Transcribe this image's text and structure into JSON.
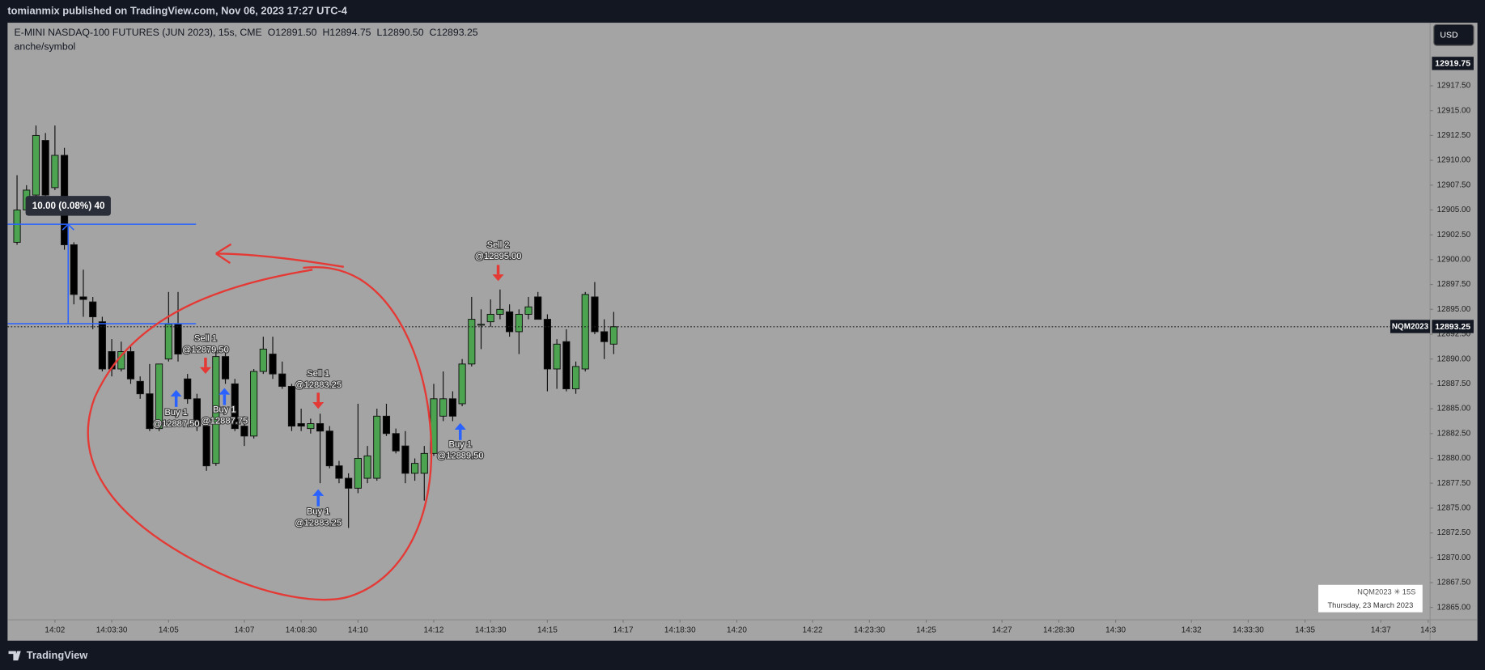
{
  "header": {
    "publisher": "tomianmix published on TradingView.com, Nov 06, 2023 17:27 UTC-4"
  },
  "chart_data": {
    "type": "candlestick",
    "title": "E-MINI NASDAQ-100 FUTURES (JUN 2023), 15s, CME",
    "legend_ohlc": [
      "O12891.50",
      "H12894.75",
      "L12890.50",
      "C12893.25"
    ],
    "indicator_label": "anche/symbol",
    "currency": "USD",
    "high_tag": "12919.75",
    "last_symbol": "NQM2023",
    "last_price": "12893.25",
    "measure_label": "10.00 (0.08%) 40",
    "up_color": "#4ca350",
    "down_color": "#000000",
    "x": [
      1.0,
      1.25,
      1.5,
      1.75,
      2.0,
      2.25,
      2.5,
      2.75,
      3.0,
      3.25,
      3.5,
      3.75,
      4.0,
      4.25,
      4.5,
      4.75,
      5.0,
      5.25,
      5.5,
      5.75,
      6.0,
      6.25,
      6.5,
      6.75,
      7.0,
      7.25,
      7.5,
      7.75,
      8.0,
      8.25,
      8.5,
      8.75,
      9.0,
      9.25,
      9.5,
      9.75,
      10.0,
      10.25,
      10.5,
      10.75,
      11.0,
      11.25,
      11.5,
      11.75,
      12.0,
      12.25,
      12.5,
      12.75,
      13.0,
      13.25,
      13.5,
      13.75,
      14.0,
      14.25,
      14.5,
      14.75,
      15.0,
      15.25,
      15.5,
      15.75,
      16.0,
      16.25,
      16.5,
      16.75
    ],
    "open": [
      12901.75,
      12905.0,
      12906.5,
      12912.0,
      12907.25,
      12910.5,
      12901.5,
      12896.25,
      12895.75,
      12893.75,
      12890.75,
      12889.0,
      12890.75,
      12887.75,
      12886.5,
      12883.0,
      12890.0,
      12893.5,
      12888.0,
      12886.0,
      12883.25,
      12879.5,
      12890.25,
      12887.5,
      12883.25,
      12882.25,
      12888.75,
      12890.5,
      12888.5,
      12887.25,
      12883.5,
      12883.0,
      12883.5,
      12882.75,
      12879.25,
      12878.0,
      12877.0,
      12878.0,
      12878.0,
      12884.25,
      12882.5,
      12881.25,
      12878.5,
      12878.5,
      12880.5,
      12884.25,
      12886.0,
      12885.5,
      12889.5,
      12893.5,
      12893.75,
      12894.5,
      12894.75,
      12892.75,
      12894.5,
      12896.25,
      12894.0,
      12889.0,
      12891.75,
      12887.0,
      12889.0,
      12896.25,
      12892.75,
      12891.5
    ],
    "high": [
      12908.5,
      12907.5,
      12913.5,
      12912.75,
      12913.5,
      12911.25,
      12901.75,
      12899.0,
      12896.25,
      12894.25,
      12892.0,
      12891.75,
      12891.25,
      12888.25,
      12889.5,
      12889.5,
      12896.75,
      12896.75,
      12888.5,
      12886.5,
      12883.75,
      12891.25,
      12891.25,
      12888.0,
      12884.25,
      12889.0,
      12892.25,
      12892.25,
      12889.75,
      12887.5,
      12885.0,
      12884.0,
      12884.5,
      12883.25,
      12879.75,
      12878.5,
      12885.5,
      12881.25,
      12885.0,
      12885.5,
      12883.0,
      12882.75,
      12880.0,
      12881.25,
      12887.5,
      12888.75,
      12886.75,
      12890.0,
      12896.25,
      12895.0,
      12896.0,
      12897.0,
      12895.5,
      12895.0,
      12896.25,
      12896.75,
      12894.5,
      12892.0,
      12893.0,
      12889.75,
      12896.75,
      12897.75,
      12894.0,
      12894.75
    ],
    "low": [
      12901.5,
      12904.5,
      12906.25,
      12906.0,
      12907.0,
      12901.0,
      12895.5,
      12894.25,
      12893.0,
      12888.75,
      12888.25,
      12888.75,
      12887.5,
      12886.0,
      12882.75,
      12882.75,
      12889.75,
      12889.75,
      12885.5,
      12882.75,
      12878.75,
      12879.25,
      12887.5,
      12882.75,
      12881.25,
      12882.0,
      12888.5,
      12888.0,
      12887.0,
      12882.75,
      12882.75,
      12882.5,
      12877.5,
      12879.0,
      12877.5,
      12873.0,
      12876.5,
      12877.5,
      12877.75,
      12882.25,
      12880.5,
      12877.5,
      12877.75,
      12875.75,
      12880.25,
      12883.75,
      12883.75,
      12885.25,
      12889.25,
      12891.0,
      12893.25,
      12894.0,
      12892.25,
      12890.5,
      12894.0,
      12894.0,
      12886.75,
      12887.0,
      12886.75,
      12886.5,
      12888.75,
      12892.5,
      12890.0,
      12890.5
    ],
    "close": [
      12905.0,
      12907.0,
      12912.5,
      12906.5,
      12910.5,
      12901.5,
      12896.5,
      12896.0,
      12894.25,
      12889.0,
      12889.0,
      12890.75,
      12888.0,
      12886.5,
      12883.0,
      12889.5,
      12893.5,
      12890.5,
      12886.0,
      12883.25,
      12879.25,
      12890.25,
      12888.0,
      12883.0,
      12882.25,
      12888.75,
      12891.0,
      12888.5,
      12887.25,
      12883.25,
      12883.25,
      12883.5,
      12882.75,
      12879.25,
      12878.0,
      12877.0,
      12880.0,
      12880.25,
      12884.25,
      12882.5,
      12880.75,
      12878.5,
      12879.5,
      12880.5,
      12886.0,
      12886.0,
      12884.25,
      12889.5,
      12894.0,
      12893.5,
      12894.5,
      12895.0,
      12892.75,
      12894.5,
      12895.25,
      12894.0,
      12889.0,
      12891.5,
      12887.0,
      12889.25,
      12896.5,
      12892.75,
      12891.75,
      12893.25
    ],
    "xlim": [
      0.75,
      38.3
    ],
    "ylim": [
      12863.75,
      12923.85
    ],
    "xticks": [
      {
        "value": 2,
        "label": "14:02"
      },
      {
        "value": 3.5,
        "label": "14:03:30"
      },
      {
        "value": 5,
        "label": "14:05"
      },
      {
        "value": 7,
        "label": "14:07"
      },
      {
        "value": 8.5,
        "label": "14:08:30"
      },
      {
        "value": 10,
        "label": "14:10"
      },
      {
        "value": 12,
        "label": "14:12"
      },
      {
        "value": 13.5,
        "label": "14:13:30"
      },
      {
        "value": 15,
        "label": "14:15"
      },
      {
        "value": 17,
        "label": "14:17"
      },
      {
        "value": 18.5,
        "label": "14:18:30"
      },
      {
        "value": 20,
        "label": "14:20"
      },
      {
        "value": 22,
        "label": "14:22"
      },
      {
        "value": 23.5,
        "label": "14:23:30"
      },
      {
        "value": 25,
        "label": "14:25"
      },
      {
        "value": 27,
        "label": "14:27"
      },
      {
        "value": 28.5,
        "label": "14:28:30"
      },
      {
        "value": 30,
        "label": "14:30"
      },
      {
        "value": 32,
        "label": "14:32"
      },
      {
        "value": 33.5,
        "label": "14:33:30"
      },
      {
        "value": 35,
        "label": "14:35"
      },
      {
        "value": 37,
        "label": "14:37"
      },
      {
        "value": 38.25,
        "label": "14:3"
      }
    ],
    "yticks": [
      {
        "value": 12865,
        "label": "12865.00"
      },
      {
        "value": 12867.5,
        "label": "12867.50"
      },
      {
        "value": 12870,
        "label": "12870.00"
      },
      {
        "value": 12872.5,
        "label": "12872.50"
      },
      {
        "value": 12875,
        "label": "12875.00"
      },
      {
        "value": 12877.5,
        "label": "12877.50"
      },
      {
        "value": 12880,
        "label": "12880.00"
      },
      {
        "value": 12882.5,
        "label": "12882.50"
      },
      {
        "value": 12885,
        "label": "12885.00"
      },
      {
        "value": 12887.5,
        "label": "12887.50"
      },
      {
        "value": 12890,
        "label": "12890.00"
      },
      {
        "value": 12892.5,
        "label": "12892.50"
      },
      {
        "value": 12895,
        "label": "12895.00"
      },
      {
        "value": 12897.5,
        "label": "12897.50"
      },
      {
        "value": 12900,
        "label": "12900.00"
      },
      {
        "value": 12902.5,
        "label": "12902.50"
      },
      {
        "value": 12905,
        "label": "12905.00"
      },
      {
        "value": 12907.5,
        "label": "12907.50"
      },
      {
        "value": 12910,
        "label": "12910.00"
      },
      {
        "value": 12912.5,
        "label": "12912.50"
      },
      {
        "value": 12915,
        "label": "12915.00"
      },
      {
        "value": 12917.5,
        "label": "12917.50"
      }
    ],
    "grid": false,
    "trades": [
      {
        "label": "Sell 1",
        "price": "@12879.50"
      },
      {
        "label": "Buy 1",
        "price": "@12887.50"
      },
      {
        "label": "Buy 1",
        "price": "@12887.75"
      },
      {
        "label": "Sell 1",
        "price": "@12883.25"
      },
      {
        "label": "Buy 1",
        "price": "@12883.25"
      },
      {
        "label": "Buy 1",
        "price": "@12889.50"
      },
      {
        "label": "Sell 2",
        "price": "@12895.00"
      }
    ],
    "info_box": {
      "symbol": "NQM2023 ✳ 15S",
      "date": "Thursday, 23 March 2023"
    }
  },
  "footer": {
    "brand": "TradingView"
  }
}
